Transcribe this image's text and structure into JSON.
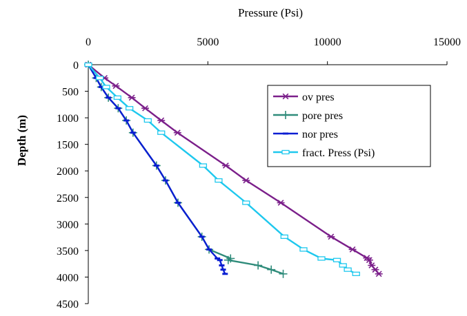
{
  "chart_data": {
    "type": "line",
    "title": "",
    "xlabel": "Pressure (Psi)",
    "ylabel": "Depth (m)",
    "x_axis_position": "top",
    "y_axis_inverted": true,
    "xlim": [
      0,
      15000
    ],
    "ylim": [
      0,
      4500
    ],
    "x_ticks": [
      "0",
      "5000",
      "10000",
      "15000"
    ],
    "y_ticks": [
      "0",
      "500",
      "1000",
      "1500",
      "2000",
      "2500",
      "3000",
      "3500",
      "4000",
      "4500"
    ],
    "grid": false,
    "legend_position": "right",
    "series": [
      {
        "name": "ov pres",
        "color": "#7B1F8A",
        "marker": "asterisk",
        "points": [
          [
            0,
            0
          ],
          [
            680,
            250
          ],
          [
            1150,
            400
          ],
          [
            1820,
            620
          ],
          [
            2380,
            820
          ],
          [
            3050,
            1050
          ],
          [
            3730,
            1280
          ],
          [
            5750,
            1900
          ],
          [
            6600,
            2180
          ],
          [
            8050,
            2600
          ],
          [
            10150,
            3240
          ],
          [
            11050,
            3480
          ],
          [
            11650,
            3640
          ],
          [
            11750,
            3680
          ],
          [
            11850,
            3780
          ],
          [
            12000,
            3860
          ],
          [
            12150,
            3940
          ]
        ]
      },
      {
        "name": "pore pres",
        "color": "#2E8B7A",
        "marker": "plus",
        "points": [
          [
            0,
            0
          ],
          [
            330,
            250
          ],
          [
            540,
            420
          ],
          [
            840,
            620
          ],
          [
            1250,
            820
          ],
          [
            1590,
            1050
          ],
          [
            1870,
            1280
          ],
          [
            2850,
            1900
          ],
          [
            3230,
            2180
          ],
          [
            3750,
            2600
          ],
          [
            4750,
            3240
          ],
          [
            5050,
            3480
          ],
          [
            5950,
            3650
          ],
          [
            5850,
            3680
          ],
          [
            7100,
            3780
          ],
          [
            7650,
            3860
          ],
          [
            8150,
            3940
          ]
        ]
      },
      {
        "name": "nor pres",
        "color": "#0A1ED2",
        "marker": "dash",
        "points": [
          [
            0,
            0
          ],
          [
            330,
            250
          ],
          [
            540,
            420
          ],
          [
            840,
            620
          ],
          [
            1250,
            820
          ],
          [
            1590,
            1050
          ],
          [
            1870,
            1280
          ],
          [
            2850,
            1900
          ],
          [
            3230,
            2180
          ],
          [
            3750,
            2600
          ],
          [
            4750,
            3240
          ],
          [
            5050,
            3480
          ],
          [
            5400,
            3650
          ],
          [
            5500,
            3680
          ],
          [
            5580,
            3780
          ],
          [
            5640,
            3860
          ],
          [
            5720,
            3940
          ]
        ]
      },
      {
        "name": "fract. Press (Psi)",
        "color": "#1EC8EE",
        "marker": "square",
        "points": [
          [
            0,
            0
          ],
          [
            480,
            250
          ],
          [
            750,
            420
          ],
          [
            1220,
            620
          ],
          [
            1720,
            820
          ],
          [
            2490,
            1050
          ],
          [
            3050,
            1280
          ],
          [
            4800,
            1900
          ],
          [
            5450,
            2180
          ],
          [
            6600,
            2600
          ],
          [
            8200,
            3240
          ],
          [
            9000,
            3480
          ],
          [
            9750,
            3650
          ],
          [
            10400,
            3680
          ],
          [
            10650,
            3780
          ],
          [
            10850,
            3860
          ],
          [
            11200,
            3940
          ]
        ]
      }
    ]
  }
}
